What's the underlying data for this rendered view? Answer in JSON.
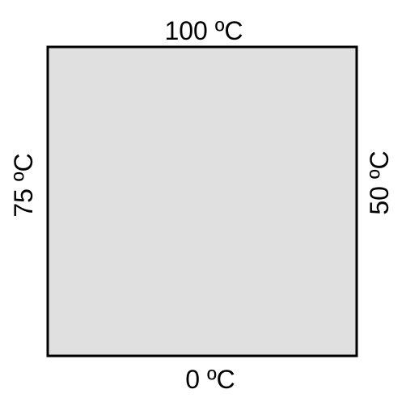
{
  "plate": {
    "fill_color": "#e0e0e0",
    "border_color": "#000000"
  },
  "boundary_labels": {
    "top": "100 ºC",
    "bottom": "0 ºC",
    "left": "75 ºC",
    "right": "50 ºC"
  }
}
